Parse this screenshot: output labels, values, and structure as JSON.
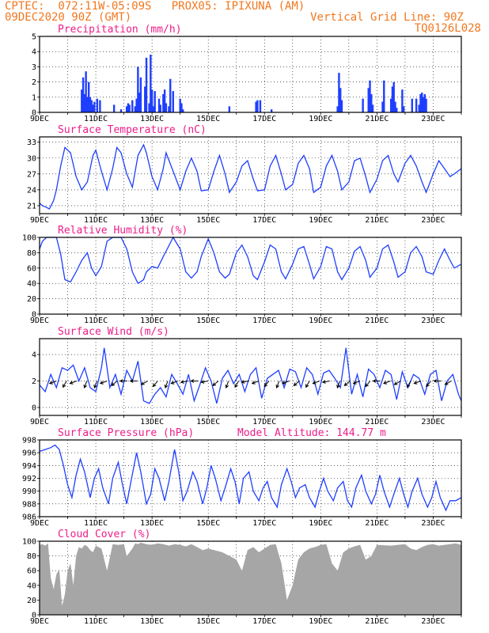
{
  "header": {
    "line1": "CPTEC:  072:11W-05:09S   PROX05: IPIXUNA (AM)",
    "line2_left": "09DEC2020 90Z (GMT)",
    "line2_right": "Vertical Grid Line: 90Z",
    "line3_right": "TQ0126L028"
  },
  "x_tick_labels": [
    "9DEC",
    "11DEC",
    "13DEC",
    "15DEC",
    "17DEC",
    "19DEC",
    "21DEC",
    "23DEC"
  ],
  "panels": [
    {
      "id": "precip",
      "title": "Precipitation (mm/h)",
      "extra": "",
      "ylim": [
        0,
        5
      ],
      "yticks": [
        "0",
        "1",
        "2",
        "3",
        "4",
        "5"
      ]
    },
    {
      "id": "temp",
      "title": "Surface Temperature (nC)",
      "extra": "",
      "ylim": [
        19.5,
        34
      ],
      "yticks": [
        "21",
        "24",
        "27",
        "30",
        "33"
      ]
    },
    {
      "id": "rh",
      "title": "Relative Humidity (%)",
      "extra": "",
      "ylim": [
        0,
        100
      ],
      "yticks": [
        "0",
        "20",
        "40",
        "60",
        "80",
        "100"
      ]
    },
    {
      "id": "wind",
      "title": "Surface Wind (m/s)",
      "extra": "",
      "ylim": [
        -0.6,
        5.2
      ],
      "yticks": [
        "0",
        "2",
        "4"
      ]
    },
    {
      "id": "pres",
      "title": "Surface Pressure (hPa)",
      "extra": "Model Altitude: 144.77 m",
      "ylim": [
        986,
        998
      ],
      "yticks": [
        "986",
        "988",
        "990",
        "992",
        "994",
        "996",
        "998"
      ]
    },
    {
      "id": "cloud",
      "title": "Cloud Cover (%)",
      "extra": "",
      "ylim": [
        0,
        100
      ],
      "yticks": [
        "0",
        "20",
        "40",
        "60",
        "80",
        "100"
      ]
    }
  ],
  "chart_data": [
    {
      "type": "bar",
      "title": "Precipitation (mm/h)",
      "x_unit": "days since 9DEC2020 09Z",
      "x": [
        1.5,
        1.55,
        1.6,
        1.65,
        1.7,
        1.75,
        1.8,
        1.85,
        1.9,
        1.95,
        2.05,
        2.15,
        2.65,
        2.9,
        3.1,
        3.15,
        3.2,
        3.3,
        3.4,
        3.45,
        3.5,
        3.55,
        3.6,
        3.75,
        3.8,
        3.9,
        3.95,
        4.0,
        4.05,
        4.1,
        4.25,
        4.3,
        4.4,
        4.45,
        4.5,
        4.6,
        4.65,
        4.75,
        5.0,
        5.05,
        5.1,
        6.75,
        7.7,
        7.75,
        7.85,
        8.25,
        10.6,
        10.65,
        10.7,
        10.75,
        11.5,
        11.7,
        11.75,
        11.8,
        11.85,
        12.2,
        12.25,
        12.5,
        12.55,
        12.6,
        12.65,
        12.7,
        12.9,
        12.95,
        13.25,
        13.4,
        13.5,
        13.55,
        13.6,
        13.65,
        13.7,
        13.75
      ],
      "values": [
        1.5,
        2.3,
        1.2,
        2.7,
        1.0,
        2.0,
        1.0,
        0.8,
        0.5,
        0.7,
        0.9,
        0.8,
        0.5,
        0.2,
        0.4,
        0.6,
        0.5,
        0.8,
        0.4,
        0.9,
        3.0,
        1.3,
        2.3,
        1.7,
        3.6,
        0.6,
        3.8,
        1.5,
        0.4,
        1.4,
        0.9,
        0.5,
        1.2,
        1.5,
        0.6,
        0.4,
        2.2,
        1.4,
        0.9,
        0.6,
        0.2,
        0.4,
        0.7,
        0.8,
        0.8,
        0.2,
        0.4,
        2.6,
        1.6,
        0.8,
        0.9,
        1.6,
        2.1,
        1.2,
        0.5,
        0.7,
        2.1,
        0.9,
        1.7,
        2.0,
        0.7,
        0.3,
        1.5,
        0.4,
        0.9,
        0.9,
        0.5,
        1.2,
        1.3,
        1.0,
        1.2,
        0.9
      ],
      "ylim": [
        0,
        5
      ]
    },
    {
      "type": "line",
      "title": "Surface Temperature (nC)",
      "x_unit": "days since 9DEC2020 09Z",
      "x": [
        0,
        0.1,
        0.2,
        0.35,
        0.5,
        0.6,
        0.75,
        0.9,
        1.1,
        1.3,
        1.5,
        1.7,
        1.9,
        2.0,
        2.2,
        2.4,
        2.6,
        2.75,
        2.9,
        3.1,
        3.3,
        3.5,
        3.7,
        3.8,
        4.0,
        4.2,
        4.4,
        4.5,
        4.75,
        5.0,
        5.2,
        5.4,
        5.6,
        5.75,
        6.0,
        6.2,
        6.4,
        6.6,
        6.75,
        7.0,
        7.2,
        7.4,
        7.6,
        7.75,
        8.0,
        8.2,
        8.4,
        8.6,
        8.75,
        9.0,
        9.2,
        9.4,
        9.6,
        9.75,
        10.0,
        10.2,
        10.4,
        10.6,
        10.75,
        11.0,
        11.2,
        11.4,
        11.6,
        11.75,
        12.0,
        12.2,
        12.4,
        12.6,
        12.75,
        13.0,
        13.2,
        13.4,
        13.6,
        13.75,
        14.0,
        14.2,
        14.4,
        14.6,
        14.75,
        15.0
      ],
      "values": [
        21.5,
        21.0,
        20.8,
        20.4,
        22.0,
        24.0,
        28.5,
        32.0,
        31.0,
        26.5,
        24.0,
        25.5,
        30.5,
        31.5,
        27.5,
        24.0,
        28.0,
        32.0,
        31.0,
        27.0,
        24.5,
        30.5,
        32.5,
        31.0,
        26.5,
        24.0,
        28.0,
        31.0,
        27.5,
        24.0,
        27.5,
        30.0,
        27.5,
        23.8,
        24.0,
        27.5,
        30.5,
        27.0,
        23.5,
        25.5,
        28.5,
        29.5,
        26.0,
        23.8,
        24.0,
        28.5,
        30.5,
        27.0,
        24.0,
        25.0,
        29.0,
        30.5,
        28.0,
        23.5,
        24.5,
        28.5,
        30.5,
        27.5,
        24.0,
        25.5,
        29.5,
        30.0,
        26.5,
        23.5,
        26.0,
        29.5,
        30.5,
        27.0,
        25.5,
        29.0,
        30.5,
        28.5,
        25.5,
        23.5,
        27.0,
        29.5,
        28.0,
        26.5,
        27.0,
        28.0
      ],
      "ylim": [
        19.5,
        34
      ]
    },
    {
      "type": "line",
      "title": "Relative Humidity (%)",
      "x_unit": "days since 9DEC2020 09Z",
      "x": [
        0,
        0.1,
        0.25,
        0.4,
        0.6,
        0.75,
        0.9,
        1.1,
        1.3,
        1.5,
        1.7,
        1.85,
        2.0,
        2.2,
        2.4,
        2.6,
        2.75,
        2.9,
        3.1,
        3.3,
        3.5,
        3.7,
        3.8,
        4.0,
        4.2,
        4.4,
        4.5,
        4.75,
        5.0,
        5.2,
        5.4,
        5.6,
        5.75,
        6.0,
        6.2,
        6.4,
        6.6,
        6.75,
        7.0,
        7.2,
        7.4,
        7.6,
        7.75,
        8.0,
        8.2,
        8.4,
        8.6,
        8.75,
        9.0,
        9.2,
        9.4,
        9.6,
        9.75,
        10.0,
        10.2,
        10.4,
        10.6,
        10.75,
        11.0,
        11.2,
        11.4,
        11.6,
        11.75,
        12.0,
        12.2,
        12.4,
        12.6,
        12.75,
        13.0,
        13.2,
        13.4,
        13.6,
        13.75,
        14.0,
        14.2,
        14.4,
        14.6,
        14.75,
        15.0
      ],
      "values": [
        85,
        95,
        100,
        100,
        100,
        78,
        45,
        42,
        55,
        70,
        80,
        60,
        50,
        62,
        95,
        100,
        100,
        100,
        85,
        55,
        40,
        45,
        55,
        62,
        60,
        75,
        82,
        100,
        85,
        55,
        47,
        55,
        75,
        98,
        80,
        55,
        47,
        52,
        80,
        90,
        75,
        50,
        45,
        68,
        90,
        85,
        55,
        46,
        65,
        85,
        88,
        65,
        46,
        62,
        88,
        85,
        55,
        45,
        60,
        82,
        88,
        70,
        48,
        60,
        85,
        90,
        68,
        48,
        55,
        80,
        88,
        75,
        55,
        52,
        70,
        85,
        70,
        60,
        65
      ],
      "ylim": [
        0,
        100
      ]
    },
    {
      "type": "line",
      "title": "Surface Wind (m/s)",
      "x_unit": "days since 9DEC2020 09Z",
      "x": [
        0,
        0.2,
        0.4,
        0.6,
        0.8,
        1.0,
        1.2,
        1.4,
        1.6,
        1.8,
        2.0,
        2.2,
        2.3,
        2.5,
        2.7,
        2.9,
        3.1,
        3.3,
        3.5,
        3.7,
        3.9,
        4.1,
        4.3,
        4.5,
        4.7,
        4.9,
        5.1,
        5.3,
        5.5,
        5.7,
        5.9,
        6.1,
        6.3,
        6.5,
        6.7,
        6.9,
        7.1,
        7.3,
        7.5,
        7.7,
        7.9,
        8.1,
        8.3,
        8.5,
        8.7,
        8.9,
        9.1,
        9.3,
        9.5,
        9.7,
        9.9,
        10.1,
        10.3,
        10.5,
        10.7,
        10.9,
        11.1,
        11.3,
        11.5,
        11.7,
        11.9,
        12.1,
        12.3,
        12.5,
        12.7,
        12.9,
        13.1,
        13.3,
        13.5,
        13.7,
        13.9,
        14.1,
        14.3,
        14.5,
        14.7,
        14.9,
        15.0
      ],
      "values": [
        1.7,
        1.2,
        2.5,
        1.5,
        3.0,
        2.8,
        3.2,
        2.0,
        3.0,
        1.5,
        1.2,
        3.0,
        4.5,
        1.5,
        2.5,
        1.0,
        2.8,
        2.0,
        3.5,
        0.5,
        0.3,
        1.0,
        1.5,
        0.8,
        2.5,
        1.8,
        1.0,
        2.5,
        0.5,
        1.7,
        3.0,
        2.0,
        0.3,
        2.2,
        2.8,
        1.8,
        2.5,
        1.2,
        2.5,
        3.0,
        0.7,
        2.2,
        2.5,
        2.8,
        1.5,
        2.9,
        2.7,
        1.5,
        3.0,
        2.5,
        1.0,
        2.6,
        2.8,
        2.2,
        1.5,
        4.5,
        1.0,
        2.5,
        0.8,
        2.9,
        2.5,
        1.5,
        2.8,
        2.5,
        0.6,
        2.7,
        1.5,
        2.5,
        2.2,
        1.0,
        2.5,
        2.8,
        0.5,
        2.0,
        2.5,
        1.0,
        0.5
      ],
      "ylim": [
        -0.6,
        5.2
      ]
    },
    {
      "type": "line",
      "title": "Surface Pressure (hPa)",
      "x_unit": "days since 9DEC2020 09Z",
      "x": [
        0,
        0.2,
        0.4,
        0.55,
        0.7,
        0.85,
        1.0,
        1.15,
        1.3,
        1.45,
        1.6,
        1.8,
        1.95,
        2.1,
        2.25,
        2.45,
        2.6,
        2.8,
        2.95,
        3.1,
        3.25,
        3.45,
        3.6,
        3.8,
        3.95,
        4.1,
        4.25,
        4.45,
        4.6,
        4.8,
        4.95,
        5.1,
        5.25,
        5.45,
        5.6,
        5.8,
        5.95,
        6.1,
        6.25,
        6.45,
        6.6,
        6.8,
        6.95,
        7.1,
        7.25,
        7.45,
        7.6,
        7.8,
        7.95,
        8.1,
        8.25,
        8.45,
        8.6,
        8.8,
        8.95,
        9.1,
        9.25,
        9.45,
        9.6,
        9.8,
        9.95,
        10.1,
        10.25,
        10.45,
        10.6,
        10.8,
        10.95,
        11.1,
        11.25,
        11.45,
        11.6,
        11.8,
        11.95,
        12.1,
        12.25,
        12.45,
        12.6,
        12.8,
        12.95,
        13.1,
        13.25,
        13.45,
        13.6,
        13.8,
        13.95,
        14.1,
        14.25,
        14.45,
        14.6,
        14.8,
        15.0
      ],
      "values": [
        996.2,
        996.5,
        996.8,
        997.2,
        996.5,
        994.0,
        991.0,
        989.0,
        992.5,
        995.0,
        993.0,
        989.0,
        992.0,
        993.5,
        990.5,
        988.0,
        992.0,
        994.5,
        991.0,
        988.0,
        991.5,
        996.0,
        993.0,
        988.0,
        989.5,
        993.5,
        992.0,
        988.5,
        991.5,
        996.5,
        993.0,
        988.5,
        990.0,
        993.0,
        991.5,
        988.0,
        990.5,
        994.0,
        992.0,
        988.5,
        990.5,
        993.5,
        991.5,
        988.0,
        992.0,
        993.0,
        990.0,
        988.5,
        990.5,
        991.5,
        989.0,
        987.5,
        991.0,
        993.5,
        991.5,
        989.0,
        990.5,
        991.0,
        989.0,
        987.5,
        990.0,
        992.0,
        990.0,
        988.5,
        990.5,
        991.5,
        988.5,
        987.5,
        990.5,
        992.5,
        990.0,
        988.0,
        989.5,
        992.5,
        990.0,
        987.5,
        989.5,
        992.0,
        989.5,
        987.5,
        990.0,
        992.0,
        989.5,
        987.5,
        989.0,
        991.5,
        989.0,
        987.0,
        988.5,
        988.5,
        989.0
      ],
      "ylim": [
        986,
        998
      ]
    },
    {
      "type": "area",
      "title": "Cloud Cover (%)",
      "x_unit": "days since 9DEC2020 09Z",
      "x": [
        0,
        0.1,
        0.2,
        0.3,
        0.4,
        0.5,
        0.6,
        0.7,
        0.8,
        0.9,
        1.0,
        1.1,
        1.2,
        1.3,
        1.4,
        1.5,
        1.6,
        1.7,
        1.8,
        1.9,
        2.0,
        2.2,
        2.4,
        2.6,
        2.8,
        3.0,
        3.1,
        3.2,
        3.3,
        3.4,
        3.5,
        3.6,
        3.8,
        4.0,
        4.2,
        4.4,
        4.6,
        4.8,
        5.0,
        5.2,
        5.4,
        5.6,
        5.8,
        6.0,
        6.5,
        7.0,
        7.2,
        7.4,
        7.6,
        7.8,
        8.0,
        8.2,
        8.4,
        8.6,
        8.8,
        9.0,
        9.2,
        9.4,
        9.6,
        9.8,
        10.0,
        10.2,
        10.4,
        10.6,
        10.8,
        11.0,
        11.2,
        11.4,
        11.6,
        11.8,
        12.0,
        12.5,
        13.0,
        13.2,
        13.4,
        13.6,
        13.8,
        14.0,
        14.2,
        14.4,
        14.6,
        14.8,
        15.0
      ],
      "values": [
        95,
        96,
        94,
        97,
        50,
        35,
        55,
        62,
        12,
        28,
        60,
        70,
        40,
        80,
        92,
        90,
        95,
        93,
        88,
        85,
        94,
        90,
        60,
        96,
        95,
        96,
        80,
        85,
        90,
        97,
        96,
        98,
        96,
        95,
        97,
        96,
        94,
        96,
        95,
        93,
        96,
        92,
        88,
        90,
        85,
        75,
        60,
        88,
        92,
        85,
        90,
        95,
        96,
        70,
        20,
        40,
        75,
        85,
        90,
        92,
        95,
        96,
        70,
        60,
        85,
        90,
        93,
        95,
        75,
        80,
        95,
        94,
        96,
        90,
        88,
        92,
        95,
        96,
        94,
        95,
        96,
        97,
        95
      ],
      "ylim": [
        0,
        100
      ]
    }
  ]
}
